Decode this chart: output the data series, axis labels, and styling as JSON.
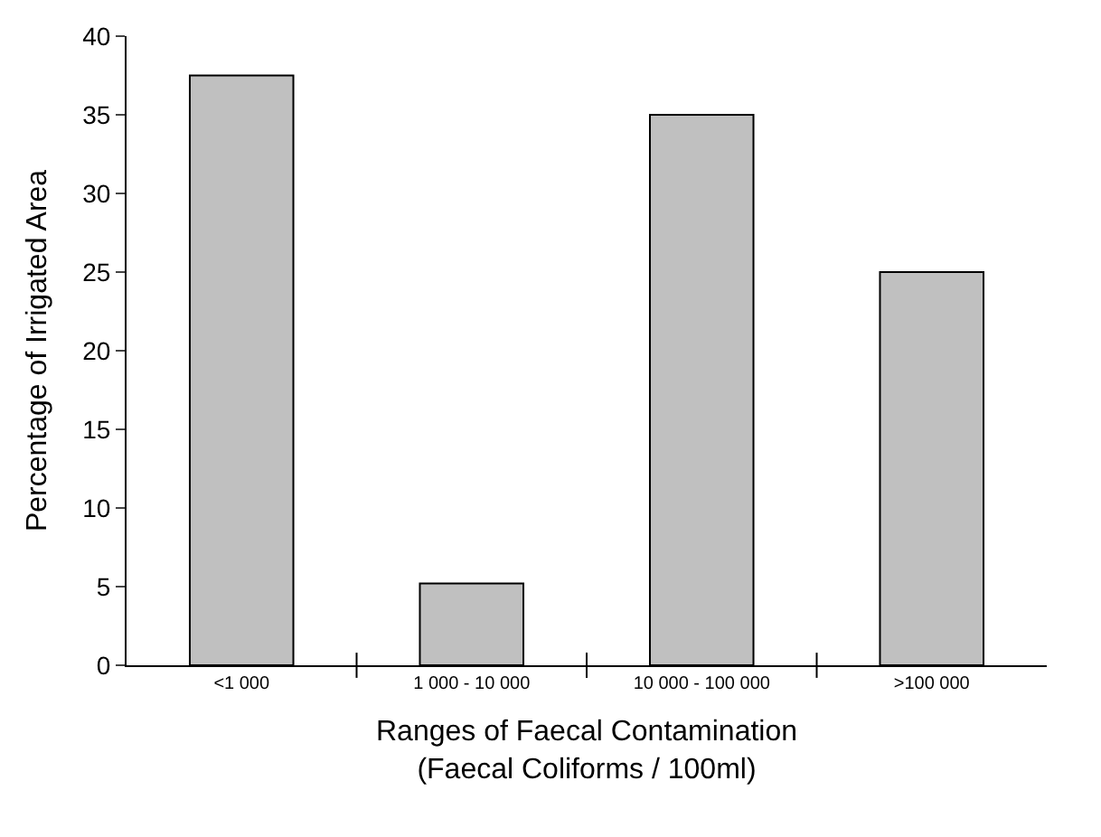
{
  "chart_data": {
    "type": "bar",
    "xlabel": "Ranges of Faecal Contamination\n(Faecal Coliforms / 100ml)",
    "ylabel": "Percentage of Irrigated Area",
    "categories": [
      "<1 000",
      "1 000 - 10 000",
      "10 000 - 100 000",
      ">100 000"
    ],
    "values": [
      37.5,
      5.2,
      35,
      25
    ],
    "color": "#c0c0c0",
    "ylim": [
      0,
      40
    ],
    "yticks": [
      0,
      5,
      10,
      15,
      20,
      25,
      30,
      35,
      40
    ]
  }
}
